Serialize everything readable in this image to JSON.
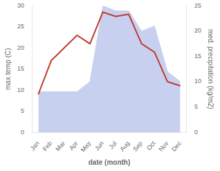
{
  "chart_data": {
    "type": "line",
    "categories": [
      "Jan",
      "Feb",
      "Mar",
      "Apr",
      "May",
      "Jun",
      "Jul",
      "Aug",
      "Sep",
      "Oct",
      "Nov",
      "Dec"
    ],
    "series": [
      {
        "type": "area",
        "color": "#c8d0f0",
        "axis": "y2",
        "values": [
          8,
          8,
          8,
          8,
          10,
          25,
          24,
          24,
          20,
          21,
          12,
          10
        ]
      },
      {
        "type": "line",
        "color": "#c0392b",
        "values": [
          9,
          17,
          20,
          23,
          21,
          28.5,
          27.5,
          28,
          21,
          19,
          12,
          11
        ]
      }
    ],
    "xlabel": "date (month)",
    "ylabel": "max temp (C)",
    "y2label": "med. precipitation (kg/m2)",
    "ylim": [
      0,
      30
    ],
    "yticks": [
      0,
      5,
      10,
      15,
      20,
      25,
      30
    ],
    "y2lim": [
      0,
      25
    ],
    "y2ticks": [
      0,
      5,
      10,
      15,
      20,
      25
    ],
    "grid": false
  }
}
